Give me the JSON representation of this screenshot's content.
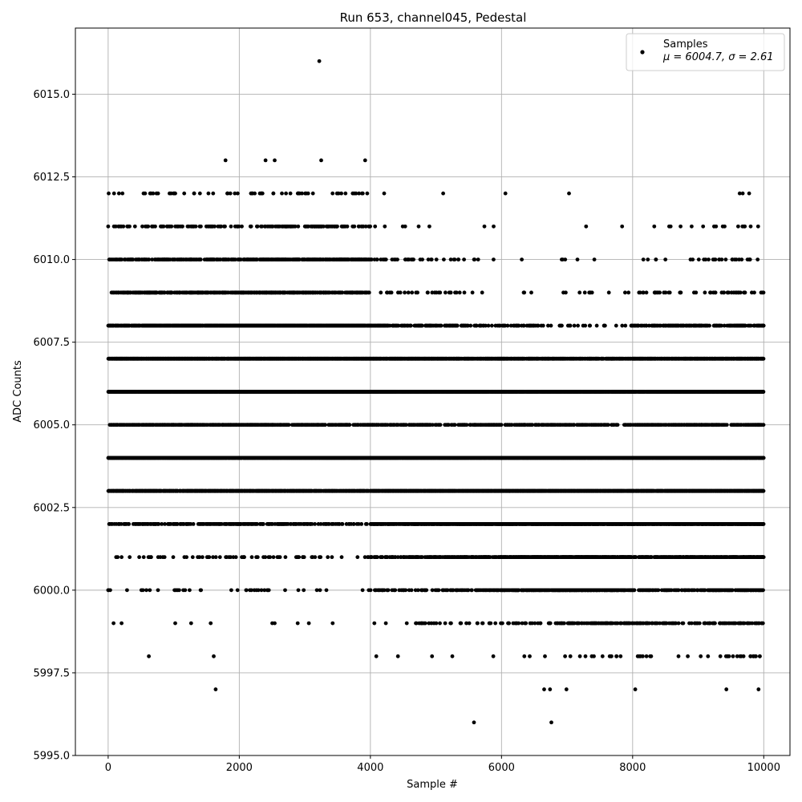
{
  "chart_data": {
    "type": "scatter",
    "title": "Run 653, channel045, Pedestal",
    "xlabel": "Sample #",
    "ylabel": "ADC Counts",
    "xlim": [
      -500,
      10400
    ],
    "ylim": [
      5995.0,
      6017.0
    ],
    "xticks": [
      "0",
      "2000",
      "4000",
      "6000",
      "8000",
      "10000"
    ],
    "yticks": [
      "5995.0",
      "5997.5",
      "6000.0",
      "6002.5",
      "6005.0",
      "6007.5",
      "6010.0",
      "6012.5",
      "6015.0"
    ],
    "grid": true,
    "legend_position": "top-right",
    "series": [
      {
        "name": "Samples",
        "stat_label_mu": "μ = 6004.7, ",
        "stat_label_sigma": "σ = 2.61",
        "color": "#000000",
        "marker": "dot",
        "n_samples": 10000,
        "level_density": [
          {
            "value": 5996,
            "density": [
              0,
              0,
              0,
              0,
              0,
              0,
              0,
              0,
              0,
              0,
              0,
              0,
              0,
              0,
              0,
              0,
              0,
              0,
              0,
              0
            ]
          },
          {
            "value": 5997,
            "density": [
              0,
              0,
              0,
              0,
              0,
              0,
              0,
              0,
              0,
              0,
              0,
              0,
              0,
              0,
              0,
              0,
              0,
              0,
              0,
              0
            ]
          },
          {
            "value": 5998,
            "density": [
              0,
              0,
              0,
              0,
              0,
              0,
              0,
              0,
              0,
              0,
              0,
              0.01,
              0.02,
              0.03,
              0.04,
              0.05,
              0.06,
              0.04,
              0.05,
              0.06
            ]
          },
          {
            "value": 5999,
            "density": [
              0.01,
              0.02,
              0.02,
              0.02,
              0.02,
              0.02,
              0.01,
              0.01,
              0.04,
              0.08,
              0.1,
              0.12,
              0.2,
              0.25,
              0.3,
              0.35,
              0.22,
              0.2,
              0.28,
              0.3
            ]
          },
          {
            "value": 6000,
            "density": [
              0.02,
              0.04,
              0.04,
              0.04,
              0.05,
              0.04,
              0.02,
              0.01,
              0.15,
              0.2,
              0.25,
              0.3,
              0.55,
              0.6,
              0.65,
              0.55,
              0.35,
              0.3,
              0.45,
              0.5
            ]
          },
          {
            "value": 6001,
            "density": [
              0.06,
              0.08,
              0.08,
              0.08,
              0.1,
              0.1,
              0.06,
              0.05,
              0.35,
              0.4,
              0.45,
              0.5,
              0.7,
              0.75,
              0.8,
              0.7,
              0.5,
              0.55,
              0.6,
              0.65
            ]
          },
          {
            "value": 6002,
            "density": [
              0.2,
              0.25,
              0.3,
              0.3,
              0.35,
              0.3,
              0.25,
              0.2,
              0.6,
              0.7,
              0.75,
              0.8,
              0.85,
              0.9,
              0.9,
              0.85,
              0.7,
              0.75,
              0.8,
              0.85
            ]
          },
          {
            "value": 6003,
            "density": [
              0.7,
              0.75,
              0.8,
              0.8,
              0.8,
              0.8,
              0.7,
              0.7,
              0.9,
              0.95,
              0.95,
              0.95,
              0.95,
              0.95,
              0.95,
              0.95,
              0.9,
              0.95,
              0.95,
              0.95
            ]
          },
          {
            "value": 6004,
            "density": [
              0.95,
              0.95,
              0.95,
              0.95,
              0.95,
              0.95,
              0.95,
              0.95,
              0.95,
              0.95,
              0.95,
              0.95,
              0.95,
              0.95,
              0.95,
              0.95,
              0.95,
              0.95,
              0.95,
              0.95
            ]
          },
          {
            "value": 6005,
            "density": [
              0.4,
              0.45,
              0.5,
              0.5,
              0.55,
              0.5,
              0.45,
              0.4,
              0.4,
              0.4,
              0.35,
              0.35,
              0.3,
              0.3,
              0.25,
              0.2,
              0.3,
              0.35,
              0.35,
              0.4
            ]
          },
          {
            "value": 6006,
            "density": [
              0.95,
              0.95,
              0.95,
              0.95,
              0.95,
              0.95,
              0.95,
              0.95,
              0.9,
              0.9,
              0.9,
              0.9,
              0.9,
              0.85,
              0.85,
              0.85,
              0.9,
              0.9,
              0.9,
              0.9
            ]
          },
          {
            "value": 6007,
            "density": [
              0.95,
              0.95,
              0.95,
              0.95,
              0.95,
              0.95,
              0.95,
              0.95,
              0.9,
              0.9,
              0.85,
              0.85,
              0.8,
              0.75,
              0.7,
              0.7,
              0.8,
              0.85,
              0.85,
              0.9
            ]
          },
          {
            "value": 6008,
            "density": [
              0.7,
              0.75,
              0.8,
              0.8,
              0.85,
              0.85,
              0.8,
              0.8,
              0.45,
              0.4,
              0.3,
              0.2,
              0.15,
              0.1,
              0.1,
              0.1,
              0.25,
              0.3,
              0.35,
              0.35
            ]
          },
          {
            "value": 6009,
            "density": [
              0.4,
              0.45,
              0.5,
              0.5,
              0.55,
              0.55,
              0.5,
              0.45,
              0.12,
              0.1,
              0.05,
              0.03,
              0.02,
              0.03,
              0.03,
              0.02,
              0.06,
              0.1,
              0.15,
              0.15
            ]
          },
          {
            "value": 6010,
            "density": [
              0.35,
              0.4,
              0.4,
              0.45,
              0.5,
              0.55,
              0.55,
              0.5,
              0.15,
              0.1,
              0.04,
              0.03,
              0.02,
              0.02,
              0.01,
              0.01,
              0.03,
              0.06,
              0.1,
              0.06
            ]
          },
          {
            "value": 6011,
            "density": [
              0.15,
              0.15,
              0.15,
              0.2,
              0.2,
              0.3,
              0.35,
              0.2,
              0.04,
              0.04,
              0.01,
              0.01,
              0,
              0,
              0,
              0,
              0,
              0.02,
              0.03,
              0.03
            ]
          },
          {
            "value": 6012,
            "density": [
              0.02,
              0.03,
              0.03,
              0.05,
              0.05,
              0.05,
              0.04,
              0.06,
              0.01,
              0.01,
              0,
              0,
              0.01,
              0,
              0,
              0,
              0,
              0,
              0,
              0.01
            ]
          },
          {
            "value": 6013,
            "density": [
              0,
              0,
              0,
              0,
              0,
              0,
              0,
              0,
              0,
              0,
              0,
              0,
              0,
              0,
              0,
              0,
              0,
              0,
              0,
              0
            ]
          },
          {
            "value": 6016,
            "density": [
              0,
              0,
              0,
              0,
              0,
              0,
              0,
              0,
              0,
              0,
              0,
              0,
              0,
              0,
              0,
              0,
              0,
              0,
              0,
              0
            ]
          }
        ],
        "outliers": [
          [
            3220,
            6016
          ],
          [
            1790,
            6013
          ],
          [
            2400,
            6013
          ],
          [
            2540,
            6013
          ],
          [
            3250,
            6013
          ],
          [
            3920,
            6013
          ],
          [
            5580,
            5996
          ],
          [
            6760,
            5996
          ],
          [
            1640,
            5997
          ],
          [
            6650,
            5997
          ],
          [
            6740,
            5997
          ],
          [
            6990,
            5997
          ],
          [
            8040,
            5997
          ],
          [
            9430,
            5997
          ],
          [
            9920,
            5997
          ],
          [
            620,
            5998
          ],
          [
            1610,
            5998
          ],
          [
            4090,
            5998
          ],
          [
            4420,
            5998
          ],
          [
            4940,
            5998
          ],
          [
            5250,
            5998
          ],
          [
            7050,
            5998
          ],
          [
            7280,
            5998
          ],
          [
            8120,
            5998
          ],
          [
            8700,
            5998
          ],
          [
            9150,
            5998
          ],
          [
            9800,
            5998
          ],
          [
            9940,
            5998
          ],
          [
            90,
            6012
          ],
          [
            540,
            6012
          ],
          [
            640,
            6012
          ],
          [
            1160,
            6012
          ],
          [
            1310,
            6012
          ],
          [
            1400,
            6012
          ],
          [
            1530,
            6012
          ],
          [
            2200,
            6012
          ],
          [
            2340,
            6012
          ],
          [
            2520,
            6012
          ],
          [
            2650,
            6012
          ],
          [
            2780,
            6012
          ],
          [
            3050,
            6012
          ],
          [
            3490,
            6012
          ],
          [
            3620,
            6012
          ],
          [
            3780,
            6012
          ],
          [
            4210,
            6012
          ],
          [
            5110,
            6012
          ],
          [
            6060,
            6012
          ],
          [
            7030,
            6012
          ],
          [
            9680,
            6012
          ],
          [
            4220,
            6011
          ],
          [
            4530,
            6011
          ],
          [
            4900,
            6011
          ],
          [
            5880,
            6011
          ],
          [
            7290,
            6011
          ],
          [
            7840,
            6011
          ],
          [
            8330,
            6011
          ],
          [
            8580,
            6011
          ],
          [
            8900,
            6011
          ],
          [
            9610,
            6011
          ],
          [
            9700,
            6011
          ]
        ]
      }
    ]
  }
}
